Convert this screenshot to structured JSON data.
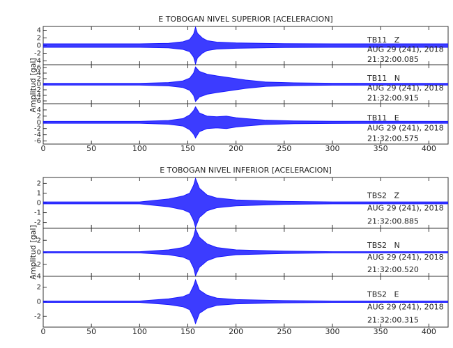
{
  "chart_data": [
    {
      "type": "seismogram",
      "title": "E TOBOGAN NIVEL SUPERIOR [ACELERACION]",
      "y_label": "Amplitud [gal]",
      "xlim": [
        0,
        420
      ],
      "xticks": [
        0,
        50,
        100,
        150,
        200,
        250,
        300,
        350,
        400
      ],
      "series": [
        {
          "name": "TB11   Z",
          "date": "AUG 29 (241), 2018",
          "time": "21:32:00.085",
          "color": "#1a1aff",
          "ylim": [
            -5,
            5
          ],
          "yticks": [
            -4,
            -2,
            0,
            2,
            4
          ],
          "x": [
            0,
            100,
            130,
            145,
            152,
            156,
            158,
            160,
            165,
            170,
            180,
            200,
            250,
            300,
            420
          ],
          "values": [
            0.45,
            0.45,
            0.6,
            1.0,
            1.6,
            3.0,
            4.8,
            3.2,
            2.0,
            1.3,
            0.9,
            0.7,
            0.5,
            0.45,
            0.45
          ]
        },
        {
          "name": "TB11   N",
          "date": "AUG 29 (241), 2018",
          "time": "21:32:00.915",
          "color": "#1a1aff",
          "ylim": [
            -7,
            7
          ],
          "yticks": [
            -6,
            -4,
            -2,
            0,
            2,
            4,
            6
          ],
          "x": [
            0,
            100,
            130,
            145,
            152,
            156,
            158,
            162,
            170,
            180,
            190,
            200,
            210,
            230,
            260,
            300,
            420
          ],
          "values": [
            0.3,
            0.3,
            0.6,
            1.2,
            2.2,
            4.0,
            6.2,
            4.6,
            3.6,
            3.0,
            2.5,
            2.0,
            1.5,
            0.8,
            0.5,
            0.35,
            0.3
          ]
        },
        {
          "name": "TB11   E",
          "date": "AUG 29 (241), 2018",
          "time": "21:32:00.575",
          "color": "#1a1aff",
          "ylim": [
            -7,
            6
          ],
          "yticks": [
            -6,
            -4,
            -2,
            0,
            2,
            4
          ],
          "x": [
            0,
            100,
            130,
            145,
            152,
            156,
            158,
            162,
            170,
            180,
            190,
            200,
            210,
            230,
            260,
            300,
            420
          ],
          "values": [
            0.3,
            0.3,
            0.6,
            1.2,
            2.4,
            3.8,
            5.0,
            3.0,
            2.0,
            1.8,
            2.0,
            1.5,
            1.2,
            0.7,
            0.45,
            0.35,
            0.3
          ]
        }
      ]
    },
    {
      "type": "seismogram",
      "title": "E TOBOGAN NIVEL INFERIOR [ACELERACION]",
      "y_label": "Amplitud [gal]",
      "xlim": [
        0,
        420
      ],
      "xticks": [
        0,
        50,
        100,
        150,
        200,
        250,
        300,
        350,
        400
      ],
      "series": [
        {
          "name": "TBS2   Z",
          "date": "AUG 29 (241), 2018",
          "time": "21:32:00.885",
          "color": "#1a1aff",
          "ylim": [
            -2.6,
            2.6
          ],
          "yticks": [
            -2,
            -1,
            0,
            1,
            2
          ],
          "x": [
            0,
            100,
            130,
            145,
            152,
            156,
            158,
            162,
            170,
            180,
            200,
            250,
            300,
            420
          ],
          "values": [
            0.1,
            0.1,
            0.4,
            0.7,
            1.0,
            1.8,
            2.5,
            1.5,
            0.8,
            0.5,
            0.3,
            0.15,
            0.1,
            0.1
          ]
        },
        {
          "name": "TBS2   N",
          "date": "AUG 29 (241), 2018",
          "time": "21:32:00.520",
          "color": "#1a1aff",
          "ylim": [
            -4,
            4
          ],
          "yticks": [
            -4,
            -2,
            0,
            2
          ],
          "x": [
            0,
            100,
            130,
            145,
            152,
            156,
            158,
            162,
            170,
            180,
            200,
            250,
            300,
            420
          ],
          "values": [
            0.1,
            0.1,
            0.4,
            0.8,
            1.3,
            2.6,
            3.9,
            2.5,
            1.4,
            0.8,
            0.4,
            0.2,
            0.1,
            0.1
          ]
        },
        {
          "name": "TBS2   E",
          "date": "AUG 29 (241), 2018",
          "time": "21:32:00.315",
          "color": "#1a1aff",
          "ylim": [
            -3.5,
            3.5
          ],
          "yticks": [
            -2,
            0,
            2
          ],
          "x": [
            0,
            100,
            130,
            145,
            152,
            156,
            158,
            162,
            170,
            180,
            200,
            250,
            300,
            420
          ],
          "values": [
            0.1,
            0.1,
            0.4,
            0.7,
            1.1,
            2.2,
            3.0,
            1.6,
            0.9,
            0.5,
            0.3,
            0.15,
            0.1,
            0.1
          ]
        }
      ]
    }
  ]
}
